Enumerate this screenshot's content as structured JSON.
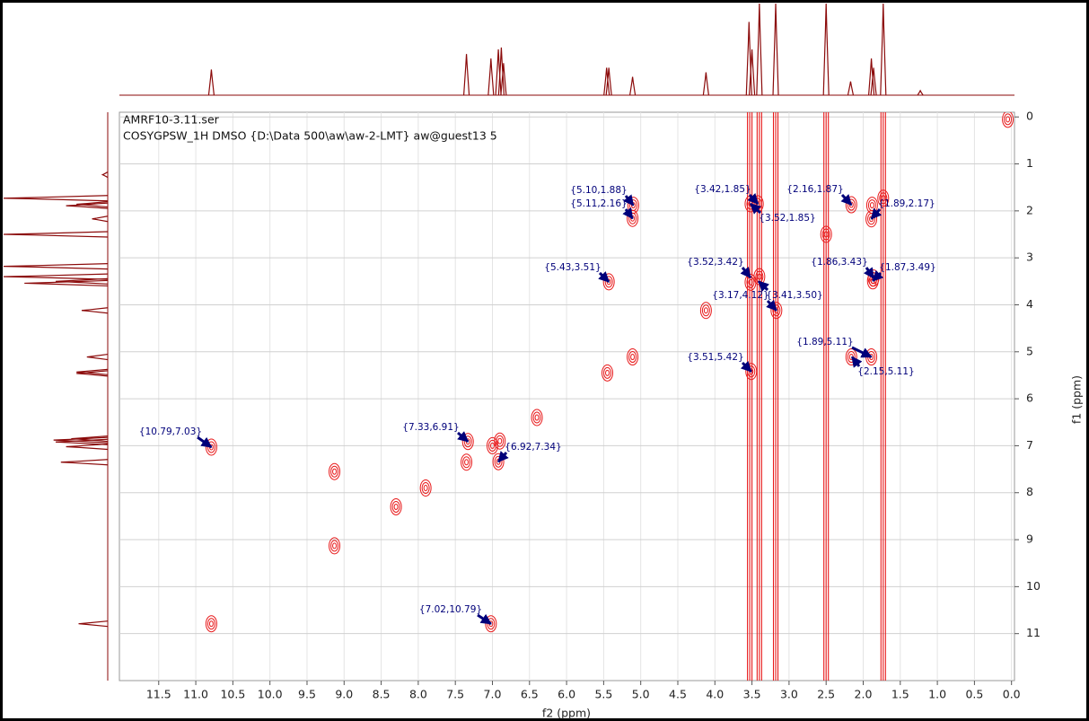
{
  "chart_data": {
    "type": "cosy",
    "title": "AMRF10-3.11.ser",
    "subtitle": "COSYGPSW_1H DMSO {D:\\Data 500\\aw\\aw-2-LMT} aw@guest13 5",
    "x_label": "f2 (ppm)",
    "y_label": "f1 (ppm)",
    "xlim": [
      12.03,
      -0.04
    ],
    "ylim": [
      -0.1,
      12
    ],
    "xticks": [
      11.5,
      {
        "value": 11,
        "label": "11.0"
      },
      10.5,
      {
        "value": 10,
        "label": "10.0"
      },
      9.5,
      {
        "value": 9,
        "label": "9.0"
      },
      8.5,
      {
        "value": 8,
        "label": "8.0"
      },
      7.5,
      {
        "value": 7,
        "label": "7.0"
      },
      6.5,
      {
        "value": 6,
        "label": "6.0"
      },
      5.5,
      {
        "value": 5,
        "label": "5.0"
      },
      4.5,
      {
        "value": 4,
        "label": "4.0"
      },
      3.5,
      {
        "value": 3,
        "label": "3.0"
      },
      2.5,
      {
        "value": 2,
        "label": "2.0"
      },
      1.5,
      {
        "value": 1,
        "label": "1.0"
      },
      0.5,
      {
        "value": 0,
        "label": "0.0"
      }
    ],
    "yticks": [
      0,
      1,
      2,
      3,
      4,
      5,
      6,
      7,
      8,
      9,
      10,
      11
    ],
    "grid": true,
    "contour_color": "#e8191a",
    "trace_color": "#8b0a0a",
    "annotation_color": "#00007a",
    "projection_peaks": [
      {
        "x": 10.79,
        "height": 0.28
      },
      {
        "x": 7.35,
        "height": 0.45
      },
      {
        "x": 7.02,
        "height": 0.4
      },
      {
        "x": 6.92,
        "height": 0.5
      },
      {
        "x": 6.88,
        "height": 0.52
      },
      {
        "x": 6.85,
        "height": 0.35
      },
      {
        "x": 5.46,
        "height": 0.3
      },
      {
        "x": 5.43,
        "height": 0.3
      },
      {
        "x": 5.11,
        "height": 0.2
      },
      {
        "x": 4.12,
        "height": 0.25
      },
      {
        "x": 3.54,
        "height": 0.8
      },
      {
        "x": 3.5,
        "height": 0.5
      },
      {
        "x": 3.4,
        "height": 1.0
      },
      {
        "x": 3.18,
        "height": 1.0
      },
      {
        "x": 2.5,
        "height": 1.0
      },
      {
        "x": 2.17,
        "height": 0.15
      },
      {
        "x": 1.89,
        "height": 0.4
      },
      {
        "x": 1.86,
        "height": 0.3
      },
      {
        "x": 1.73,
        "height": 1.0
      },
      {
        "x": 1.23,
        "height": 0.05
      }
    ],
    "streaks": [
      3.53,
      3.4,
      3.18,
      2.5,
      1.73
    ],
    "peaks": [
      {
        "x": 10.79,
        "y": 10.79
      },
      {
        "x": 7.35,
        "y": 7.35
      },
      {
        "x": 7.0,
        "y": 7.0
      },
      {
        "x": 6.9,
        "y": 6.9
      },
      {
        "x": 5.45,
        "y": 5.45
      },
      {
        "x": 5.11,
        "y": 5.11
      },
      {
        "x": 4.12,
        "y": 4.12
      },
      {
        "x": 3.52,
        "y": 3.52
      },
      {
        "x": 3.4,
        "y": 3.4
      },
      {
        "x": 2.5,
        "y": 2.5
      },
      {
        "x": 1.88,
        "y": 1.88
      },
      {
        "x": 1.73,
        "y": 1.73
      },
      {
        "x": 7.9,
        "y": 7.9
      },
      {
        "x": 8.3,
        "y": 8.3
      },
      {
        "x": 6.4,
        "y": 6.4
      },
      {
        "x": 9.13,
        "y": 9.13
      },
      {
        "x": 9.13,
        "y": 7.55
      },
      {
        "x": 10.79,
        "y": 7.03
      },
      {
        "x": 7.02,
        "y": 10.79
      },
      {
        "x": 7.33,
        "y": 6.91
      },
      {
        "x": 6.92,
        "y": 7.34
      },
      {
        "x": 5.1,
        "y": 1.88
      },
      {
        "x": 5.11,
        "y": 2.16
      },
      {
        "x": 1.89,
        "y": 5.11
      },
      {
        "x": 2.16,
        "y": 5.11
      },
      {
        "x": 5.43,
        "y": 3.51
      },
      {
        "x": 3.51,
        "y": 5.42
      },
      {
        "x": 3.42,
        "y": 1.85
      },
      {
        "x": 3.52,
        "y": 1.85
      },
      {
        "x": 1.86,
        "y": 3.43
      },
      {
        "x": 1.87,
        "y": 3.49
      },
      {
        "x": 2.16,
        "y": 1.87
      },
      {
        "x": 1.89,
        "y": 2.17
      },
      {
        "x": 3.17,
        "y": 4.12
      },
      {
        "x": 0.05,
        "y": 0.05
      }
    ],
    "annotations": [
      {
        "label": "{10.79,7.03}",
        "x": 10.79,
        "y": 7.03
      },
      {
        "label": "{7.33,6.91}",
        "x": 7.33,
        "y": 6.91
      },
      {
        "label": "{6.92,7.34}",
        "x": 6.92,
        "y": 7.34
      },
      {
        "label": "{5.10,1.88}",
        "x": 5.1,
        "y": 1.88
      },
      {
        "label": "{5.11,2.16}",
        "x": 5.11,
        "y": 2.16
      },
      {
        "label": "{5.43,3.51}",
        "x": 5.43,
        "y": 3.51
      },
      {
        "label": "{3.42,1.85}",
        "x": 3.42,
        "y": 1.85
      },
      {
        "label": "{3.52,1.85}",
        "x": 3.52,
        "y": 1.85
      },
      {
        "label": "{2.16,1.87}",
        "x": 2.16,
        "y": 1.87
      },
      {
        "label": "{1.89,2.17}",
        "x": 1.89,
        "y": 2.17
      },
      {
        "label": "{3.52,3.42}",
        "x": 3.52,
        "y": 3.42
      },
      {
        "label": "{1.86,3.43}",
        "x": 1.86,
        "y": 3.43
      },
      {
        "label": "{1.87,3.49}",
        "x": 1.87,
        "y": 3.49
      },
      {
        "label": "{3.17,4.12}",
        "x": 3.17,
        "y": 4.12
      },
      {
        "label": "{3.41,3.50}",
        "x": 3.41,
        "y": 3.5
      },
      {
        "label": "{1.89,5.11}",
        "x": 1.89,
        "y": 5.11
      },
      {
        "label": "{3.51,5.42}",
        "x": 3.51,
        "y": 5.42
      },
      {
        "label": "{2.15,5.11}",
        "x": 2.15,
        "y": 5.11
      },
      {
        "label": "{7.02,10.79}",
        "x": 7.02,
        "y": 10.79
      }
    ]
  }
}
